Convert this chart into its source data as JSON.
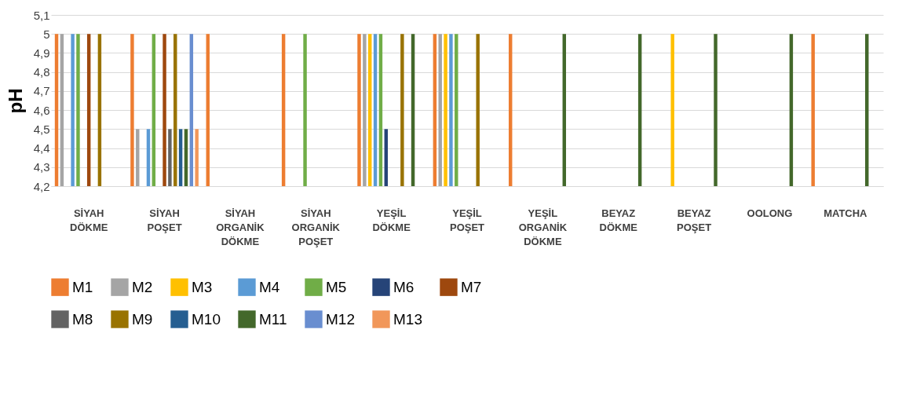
{
  "chart_data": {
    "type": "bar",
    "ylabel": "pH",
    "categories": [
      "SİYAH DÖKME",
      "SİYAH POŞET",
      "SİYAH ORGANİK DÖKME",
      "SİYAH ORGANİK POŞET",
      "YEŞİL DÖKME",
      "YEŞİL POŞET",
      "YEŞİL ORGANİK DÖKME",
      "BEYAZ DÖKME",
      "BEYAZ POŞET",
      "OOLONG",
      "MATCHA"
    ],
    "series": [
      {
        "name": "M1",
        "color": "#ed7d31",
        "values": [
          5,
          5,
          5,
          5,
          5,
          5,
          5,
          null,
          null,
          null,
          5
        ]
      },
      {
        "name": "M2",
        "color": "#a5a5a5",
        "values": [
          5,
          4.5,
          null,
          null,
          5,
          5,
          null,
          null,
          null,
          null,
          null
        ]
      },
      {
        "name": "M3",
        "color": "#ffc000",
        "values": [
          null,
          null,
          null,
          null,
          5,
          5,
          null,
          null,
          5,
          null,
          null
        ]
      },
      {
        "name": "M4",
        "color": "#5b9bd5",
        "values": [
          5,
          4.5,
          null,
          null,
          5,
          5,
          null,
          null,
          null,
          null,
          null
        ]
      },
      {
        "name": "M5",
        "color": "#70ad47",
        "values": [
          5,
          5,
          null,
          5,
          5,
          5,
          null,
          null,
          null,
          null,
          null
        ]
      },
      {
        "name": "M6",
        "color": "#264478",
        "values": [
          null,
          null,
          null,
          null,
          4.5,
          null,
          null,
          null,
          null,
          null,
          null
        ]
      },
      {
        "name": "M7",
        "color": "#9e480e",
        "values": [
          5,
          5,
          null,
          null,
          null,
          null,
          null,
          null,
          null,
          null,
          null
        ]
      },
      {
        "name": "M8",
        "color": "#636363",
        "values": [
          null,
          4.5,
          null,
          null,
          null,
          null,
          null,
          null,
          null,
          null,
          null
        ]
      },
      {
        "name": "M9",
        "color": "#997300",
        "values": [
          5,
          5,
          null,
          null,
          5,
          5,
          null,
          null,
          null,
          null,
          null
        ]
      },
      {
        "name": "M10",
        "color": "#255e91",
        "values": [
          null,
          4.5,
          null,
          null,
          null,
          null,
          null,
          null,
          null,
          null,
          null
        ]
      },
      {
        "name": "M11",
        "color": "#43682b",
        "values": [
          null,
          4.5,
          null,
          null,
          5,
          null,
          5,
          5,
          5,
          5,
          5
        ]
      },
      {
        "name": "M12",
        "color": "#698ed0",
        "values": [
          null,
          5,
          null,
          null,
          null,
          null,
          null,
          null,
          null,
          null,
          null
        ]
      },
      {
        "name": "M13",
        "color": "#f1975a",
        "values": [
          null,
          4.5,
          null,
          null,
          null,
          null,
          null,
          null,
          null,
          null,
          null
        ]
      }
    ],
    "ylim": [
      4.2,
      5.1
    ],
    "yticks": [
      {
        "value": 4.2,
        "label": "4,2"
      },
      {
        "value": 4.3,
        "label": "4,3"
      },
      {
        "value": 4.4,
        "label": "4,4"
      },
      {
        "value": 4.5,
        "label": "4,5"
      },
      {
        "value": 4.6,
        "label": "4,6"
      },
      {
        "value": 4.7,
        "label": "4,7"
      },
      {
        "value": 4.8,
        "label": "4,8"
      },
      {
        "value": 4.9,
        "label": "4,9"
      },
      {
        "value": 5,
        "label": "5"
      },
      {
        "value": 5.1,
        "label": "5,1"
      }
    ],
    "grid": "y",
    "legend": "bottom"
  }
}
